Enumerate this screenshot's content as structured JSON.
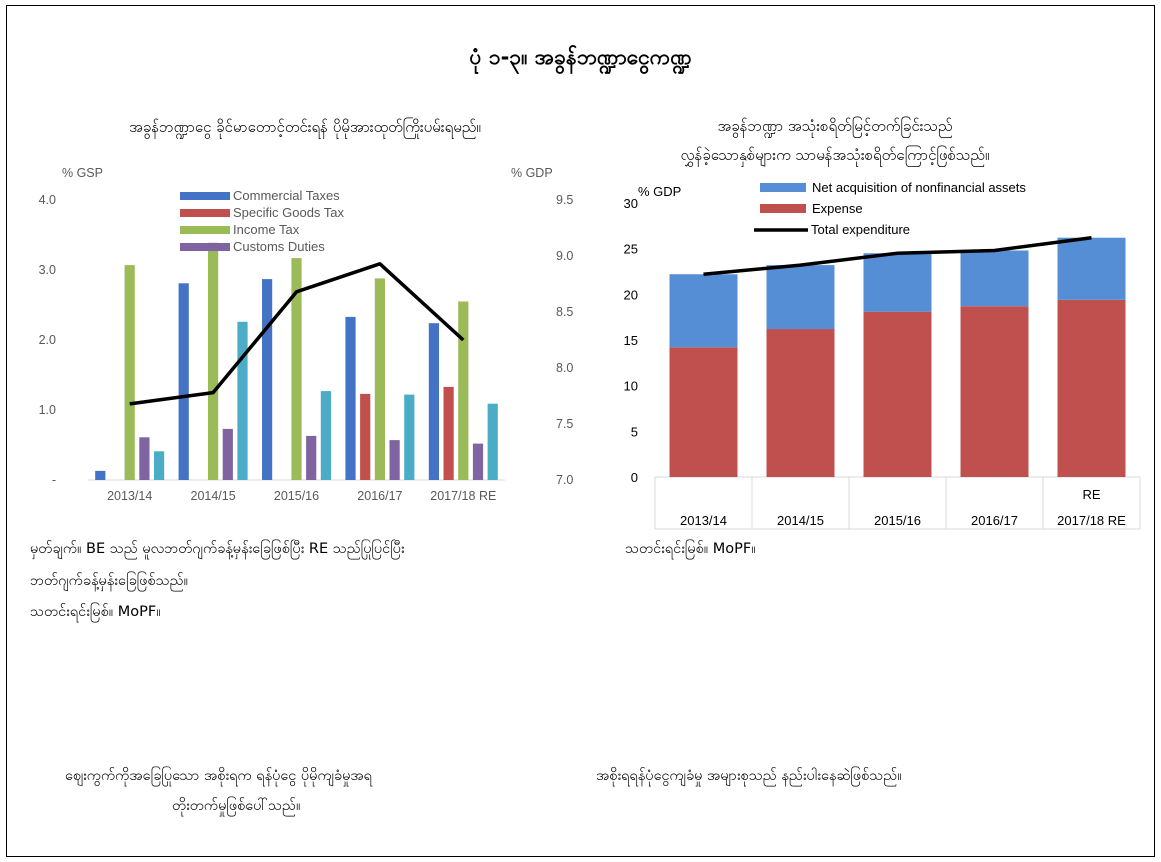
{
  "title": "ပုံ ၁-၃။ အခွန်ဘဏ္ဍာငွေကဏ္ဍ",
  "left_chart": {
    "subtitle": "အခွန်ဘဏ္ဍာငွေ ခိုင်မာတောင့်တင်းရန် ပိုမိုအားထုတ်ကြိုးပမ်းရမည်။",
    "note_lines": [
      "မှတ်ချက်။ BE သည် မူလဘတ်ဂျက်ခန့်မှန်းခြေဖြစ်ပြီး RE သည်ပြုပြင်ပြီး",
      "ဘတ်ဂျက်ခန့်မှန်းခြေဖြစ်သည်။",
      "သတင်းရင်းမြစ်။ MoPF။"
    ]
  },
  "right_chart": {
    "subtitle_lines": [
      "အခွန်ဘဏ္ဍာ အသုံးစရိတ်မြင့်တက်ခြင်းသည်",
      "လွှန်ခဲ့သောနှစ်များက သာမန်အသုံးစရိတ်ကြောင့်ဖြစ်သည်။"
    ],
    "source": "သတင်းရင်းမြစ်။ MoPF။"
  },
  "bottom_texts": {
    "left_line1": "ဈေးကွက်ကိုအခြေပြုသော အစိုးရက ရန်ပုံငွေ ပိုမိုကျခံမှုအရ",
    "left_line2": "တိုးတက်မှုဖြစ်ပေါ်သည်။",
    "right": "အစိုးရရန်ပုံငွေကျခံမှု အများစုသည် နည်းပါးနေဆဲဖြစ်သည်။"
  },
  "chart_data": [
    {
      "type": "bar",
      "title": "အခွန်ဘဏ္ဍာငွေ ခိုင်မာတောင့်တင်းရန် ပိုမိုအားထုတ်ကြိုးပမ်းရမည်။",
      "ylabel": "% GSP",
      "y2label": "% GDP",
      "ylim": [
        0,
        4
      ],
      "y2lim": [
        7,
        9.5
      ],
      "yticks": [
        "-",
        "1.0",
        "2.0",
        "3.0",
        "4.0"
      ],
      "y2ticks": [
        "7.0",
        "7.5",
        "8.0",
        "8.5",
        "9.0",
        "9.5"
      ],
      "categories": [
        "2013/14",
        "2014/15",
        "2015/16",
        "2016/17",
        "2017/18 RE"
      ],
      "series": [
        {
          "name": "Commercial Taxes",
          "color": "#4472C4",
          "values": [
            0.13,
            2.81,
            2.87,
            2.33,
            2.24
          ]
        },
        {
          "name": "Specific Goods Tax",
          "color": "#C0504D",
          "values": [
            0,
            0,
            0,
            1.23,
            1.33
          ]
        },
        {
          "name": "Income Tax",
          "color": "#9BBB59",
          "values": [
            3.07,
            3.39,
            3.17,
            2.88,
            2.55
          ]
        },
        {
          "name": "Customs Duties",
          "color": "#8064A2",
          "values": [
            0.61,
            0.73,
            0.63,
            0.57,
            0.52
          ]
        },
        {
          "color": "#4BACC6",
          "values": [
            0.41,
            2.26,
            1.27,
            1.22,
            1.09
          ]
        }
      ],
      "line_series": {
        "axis": "y2",
        "color": "#000000",
        "values": [
          7.68,
          7.78,
          8.68,
          8.93,
          8.25
        ]
      },
      "legend": "top-center"
    },
    {
      "type": "bar",
      "stacked": true,
      "title_lines": [
        "အခွန်ဘဏ္ဍာ အသုံးစရိတ်မြင့်တက်ခြင်းသည်",
        "လွှန်ခဲ့သောနှစ်များက သာမန်အသုံးစရိတ်ကြောင့်ဖြစ်သည်။"
      ],
      "ylabel": "% GDP",
      "ylim": [
        0,
        30
      ],
      "yticks": [
        "0",
        "5",
        "10",
        "15",
        "20",
        "25",
        "30"
      ],
      "categories": [
        "2013/14",
        "2014/15",
        "2015/16",
        "2016/17",
        "2017/18 RE"
      ],
      "category_top_labels": [
        "",
        "",
        "",
        "",
        "RE"
      ],
      "category_bottom_labels": [
        "2013/14",
        "2014/15",
        "2015/16",
        "2016/17",
        "2017/18 RE"
      ],
      "series": [
        {
          "name": "Expense",
          "color": "#C0504D",
          "values": [
            14.2,
            16.2,
            18.1,
            18.7,
            19.4
          ]
        },
        {
          "name": "Net acquisition of nonfinancial assets",
          "color": "#558ED5",
          "values": [
            8.0,
            7.0,
            6.4,
            6.1,
            6.8
          ]
        }
      ],
      "line_series": {
        "name": "Total expenditure",
        "color": "#000000",
        "values": [
          22.2,
          23.2,
          24.5,
          24.8,
          26.2
        ]
      },
      "legend": "top-center"
    }
  ]
}
